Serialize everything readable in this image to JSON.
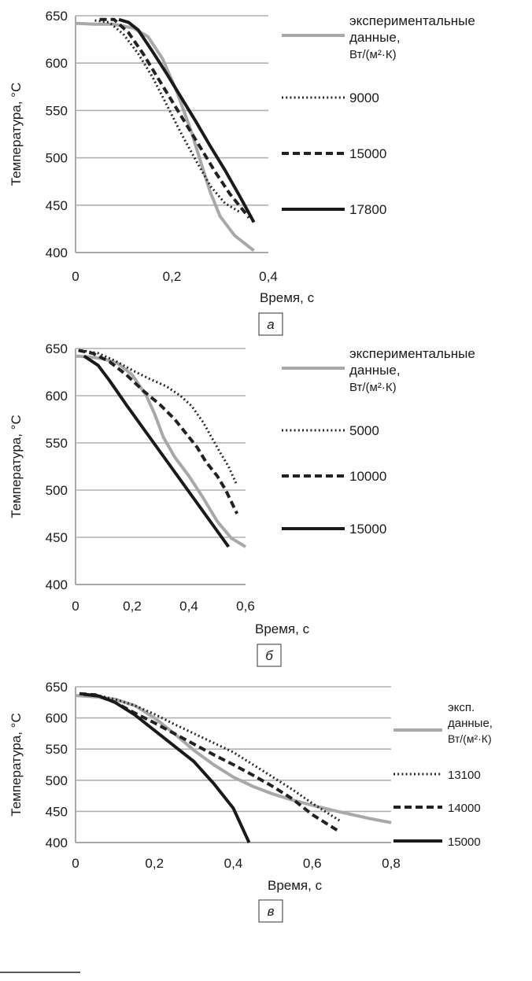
{
  "chart_data": [
    {
      "type": "line",
      "panel_label": "а",
      "xlabel": "Время, с",
      "ylabel": "Температура, °С",
      "xlim": [
        0,
        0.4
      ],
      "ylim": [
        400,
        650
      ],
      "xticks": [
        "0",
        "0,2",
        "0,4"
      ],
      "yticks": [
        "400",
        "450",
        "500",
        "550",
        "600",
        "650"
      ],
      "legend_placement": "right",
      "series": [
        {
          "name": "экспериментальные данные, Вт/(м²·К)",
          "color": "#a8a8a8",
          "dash": "solid",
          "x": [
            0,
            0.04,
            0.08,
            0.12,
            0.15,
            0.18,
            0.21,
            0.24,
            0.26,
            0.28,
            0.3,
            0.33,
            0.35,
            0.37
          ],
          "y": [
            642,
            641,
            641,
            637,
            628,
            605,
            570,
            528,
            495,
            463,
            438,
            418,
            410,
            402
          ]
        },
        {
          "name": "9000",
          "color": "#2a2a2a",
          "dash": "dotted",
          "x": [
            0.04,
            0.07,
            0.1,
            0.13,
            0.16,
            0.19,
            0.22,
            0.25,
            0.28,
            0.31,
            0.34
          ],
          "y": [
            645,
            643,
            630,
            610,
            585,
            555,
            525,
            497,
            470,
            452,
            443
          ]
        },
        {
          "name": "15000",
          "color": "#222222",
          "dash": "dashed",
          "x": [
            0.05,
            0.08,
            0.11,
            0.14,
            0.17,
            0.2,
            0.23,
            0.26,
            0.29,
            0.32,
            0.36
          ],
          "y": [
            646,
            646,
            632,
            610,
            585,
            560,
            535,
            510,
            485,
            462,
            437
          ]
        },
        {
          "name": "17800",
          "color": "#1a1a1a",
          "dash": "solid",
          "x": [
            0.09,
            0.11,
            0.13,
            0.16,
            0.19,
            0.22,
            0.25,
            0.28,
            0.31,
            0.34,
            0.37
          ],
          "y": [
            646,
            643,
            635,
            612,
            588,
            563,
            538,
            512,
            487,
            460,
            432
          ]
        }
      ]
    },
    {
      "type": "line",
      "panel_label": "б",
      "xlabel": "Время, с",
      "ylabel": "Температура, °С",
      "xlim": [
        0,
        0.6
      ],
      "ylim": [
        400,
        650
      ],
      "xticks": [
        "0",
        "0,2",
        "0,4",
        "0,6"
      ],
      "yticks": [
        "400",
        "450",
        "500",
        "550",
        "600",
        "650"
      ],
      "legend_placement": "right",
      "series": [
        {
          "name": "экспериментальные данные, Вт/(м²·К)",
          "color": "#a8a8a8",
          "dash": "solid",
          "x": [
            0,
            0.05,
            0.1,
            0.15,
            0.2,
            0.25,
            0.28,
            0.31,
            0.35,
            0.4,
            0.45,
            0.5,
            0.55,
            0.6
          ],
          "y": [
            642,
            641,
            639,
            634,
            622,
            600,
            580,
            556,
            535,
            515,
            492,
            467,
            449,
            440
          ]
        },
        {
          "name": "5000",
          "color": "#2a2a2a",
          "dash": "dotted",
          "x": [
            0.02,
            0.08,
            0.14,
            0.2,
            0.26,
            0.32,
            0.37,
            0.41,
            0.45,
            0.48,
            0.51,
            0.54,
            0.57
          ],
          "y": [
            648,
            645,
            637,
            627,
            618,
            610,
            600,
            589,
            572,
            556,
            540,
            525,
            505
          ]
        },
        {
          "name": "10000",
          "color": "#222222",
          "dash": "dashed",
          "x": [
            0.01,
            0.06,
            0.12,
            0.18,
            0.24,
            0.3,
            0.35,
            0.39,
            0.43,
            0.46,
            0.5,
            0.53,
            0.57
          ],
          "y": [
            648,
            645,
            636,
            622,
            605,
            590,
            575,
            560,
            545,
            530,
            515,
            500,
            475
          ]
        },
        {
          "name": "15000",
          "color": "#1a1a1a",
          "dash": "solid",
          "x": [
            0.03,
            0.08,
            0.12,
            0.18,
            0.24,
            0.3,
            0.36,
            0.42,
            0.48,
            0.54
          ],
          "y": [
            642,
            632,
            616,
            590,
            565,
            540,
            515,
            490,
            465,
            440
          ]
        }
      ]
    },
    {
      "type": "line",
      "panel_label": "в",
      "xlabel": "Время, с",
      "ylabel": "Температура, °С",
      "xlim": [
        0,
        0.8
      ],
      "ylim": [
        400,
        650
      ],
      "xticks": [
        "0",
        "0,2",
        "0,4",
        "0,6",
        "0,8"
      ],
      "yticks": [
        "400",
        "450",
        "500",
        "550",
        "600",
        "650"
      ],
      "legend_placement": "right",
      "series": [
        {
          "name": "эксп. данные, Вт/(м²·К)",
          "color": "#a8a8a8",
          "dash": "solid",
          "x": [
            0,
            0.05,
            0.1,
            0.15,
            0.2,
            0.25,
            0.3,
            0.35,
            0.4,
            0.45,
            0.5,
            0.55,
            0.6,
            0.65,
            0.7,
            0.75,
            0.8
          ],
          "y": [
            636,
            634,
            630,
            620,
            600,
            575,
            548,
            525,
            505,
            490,
            478,
            468,
            460,
            452,
            445,
            438,
            432
          ]
        },
        {
          "name": "13100",
          "color": "#2a2a2a",
          "dash": "dotted",
          "x": [
            0.01,
            0.05,
            0.1,
            0.15,
            0.2,
            0.25,
            0.3,
            0.35,
            0.4,
            0.45,
            0.5,
            0.55,
            0.6,
            0.67
          ],
          "y": [
            639,
            637,
            630,
            620,
            606,
            590,
            575,
            560,
            545,
            525,
            505,
            485,
            463,
            435
          ]
        },
        {
          "name": "14000",
          "color": "#222222",
          "dash": "dashed",
          "x": [
            0.01,
            0.05,
            0.1,
            0.15,
            0.2,
            0.25,
            0.3,
            0.35,
            0.4,
            0.45,
            0.5,
            0.55,
            0.6,
            0.67
          ],
          "y": [
            639,
            637,
            625,
            608,
            592,
            575,
            558,
            541,
            525,
            508,
            490,
            470,
            445,
            417
          ]
        },
        {
          "name": "15000",
          "color": "#1a1a1a",
          "dash": "solid",
          "x": [
            0.02,
            0.06,
            0.1,
            0.15,
            0.2,
            0.25,
            0.3,
            0.35,
            0.4,
            0.44
          ],
          "y": [
            638,
            635,
            625,
            605,
            580,
            555,
            530,
            495,
            455,
            400
          ]
        }
      ]
    }
  ]
}
